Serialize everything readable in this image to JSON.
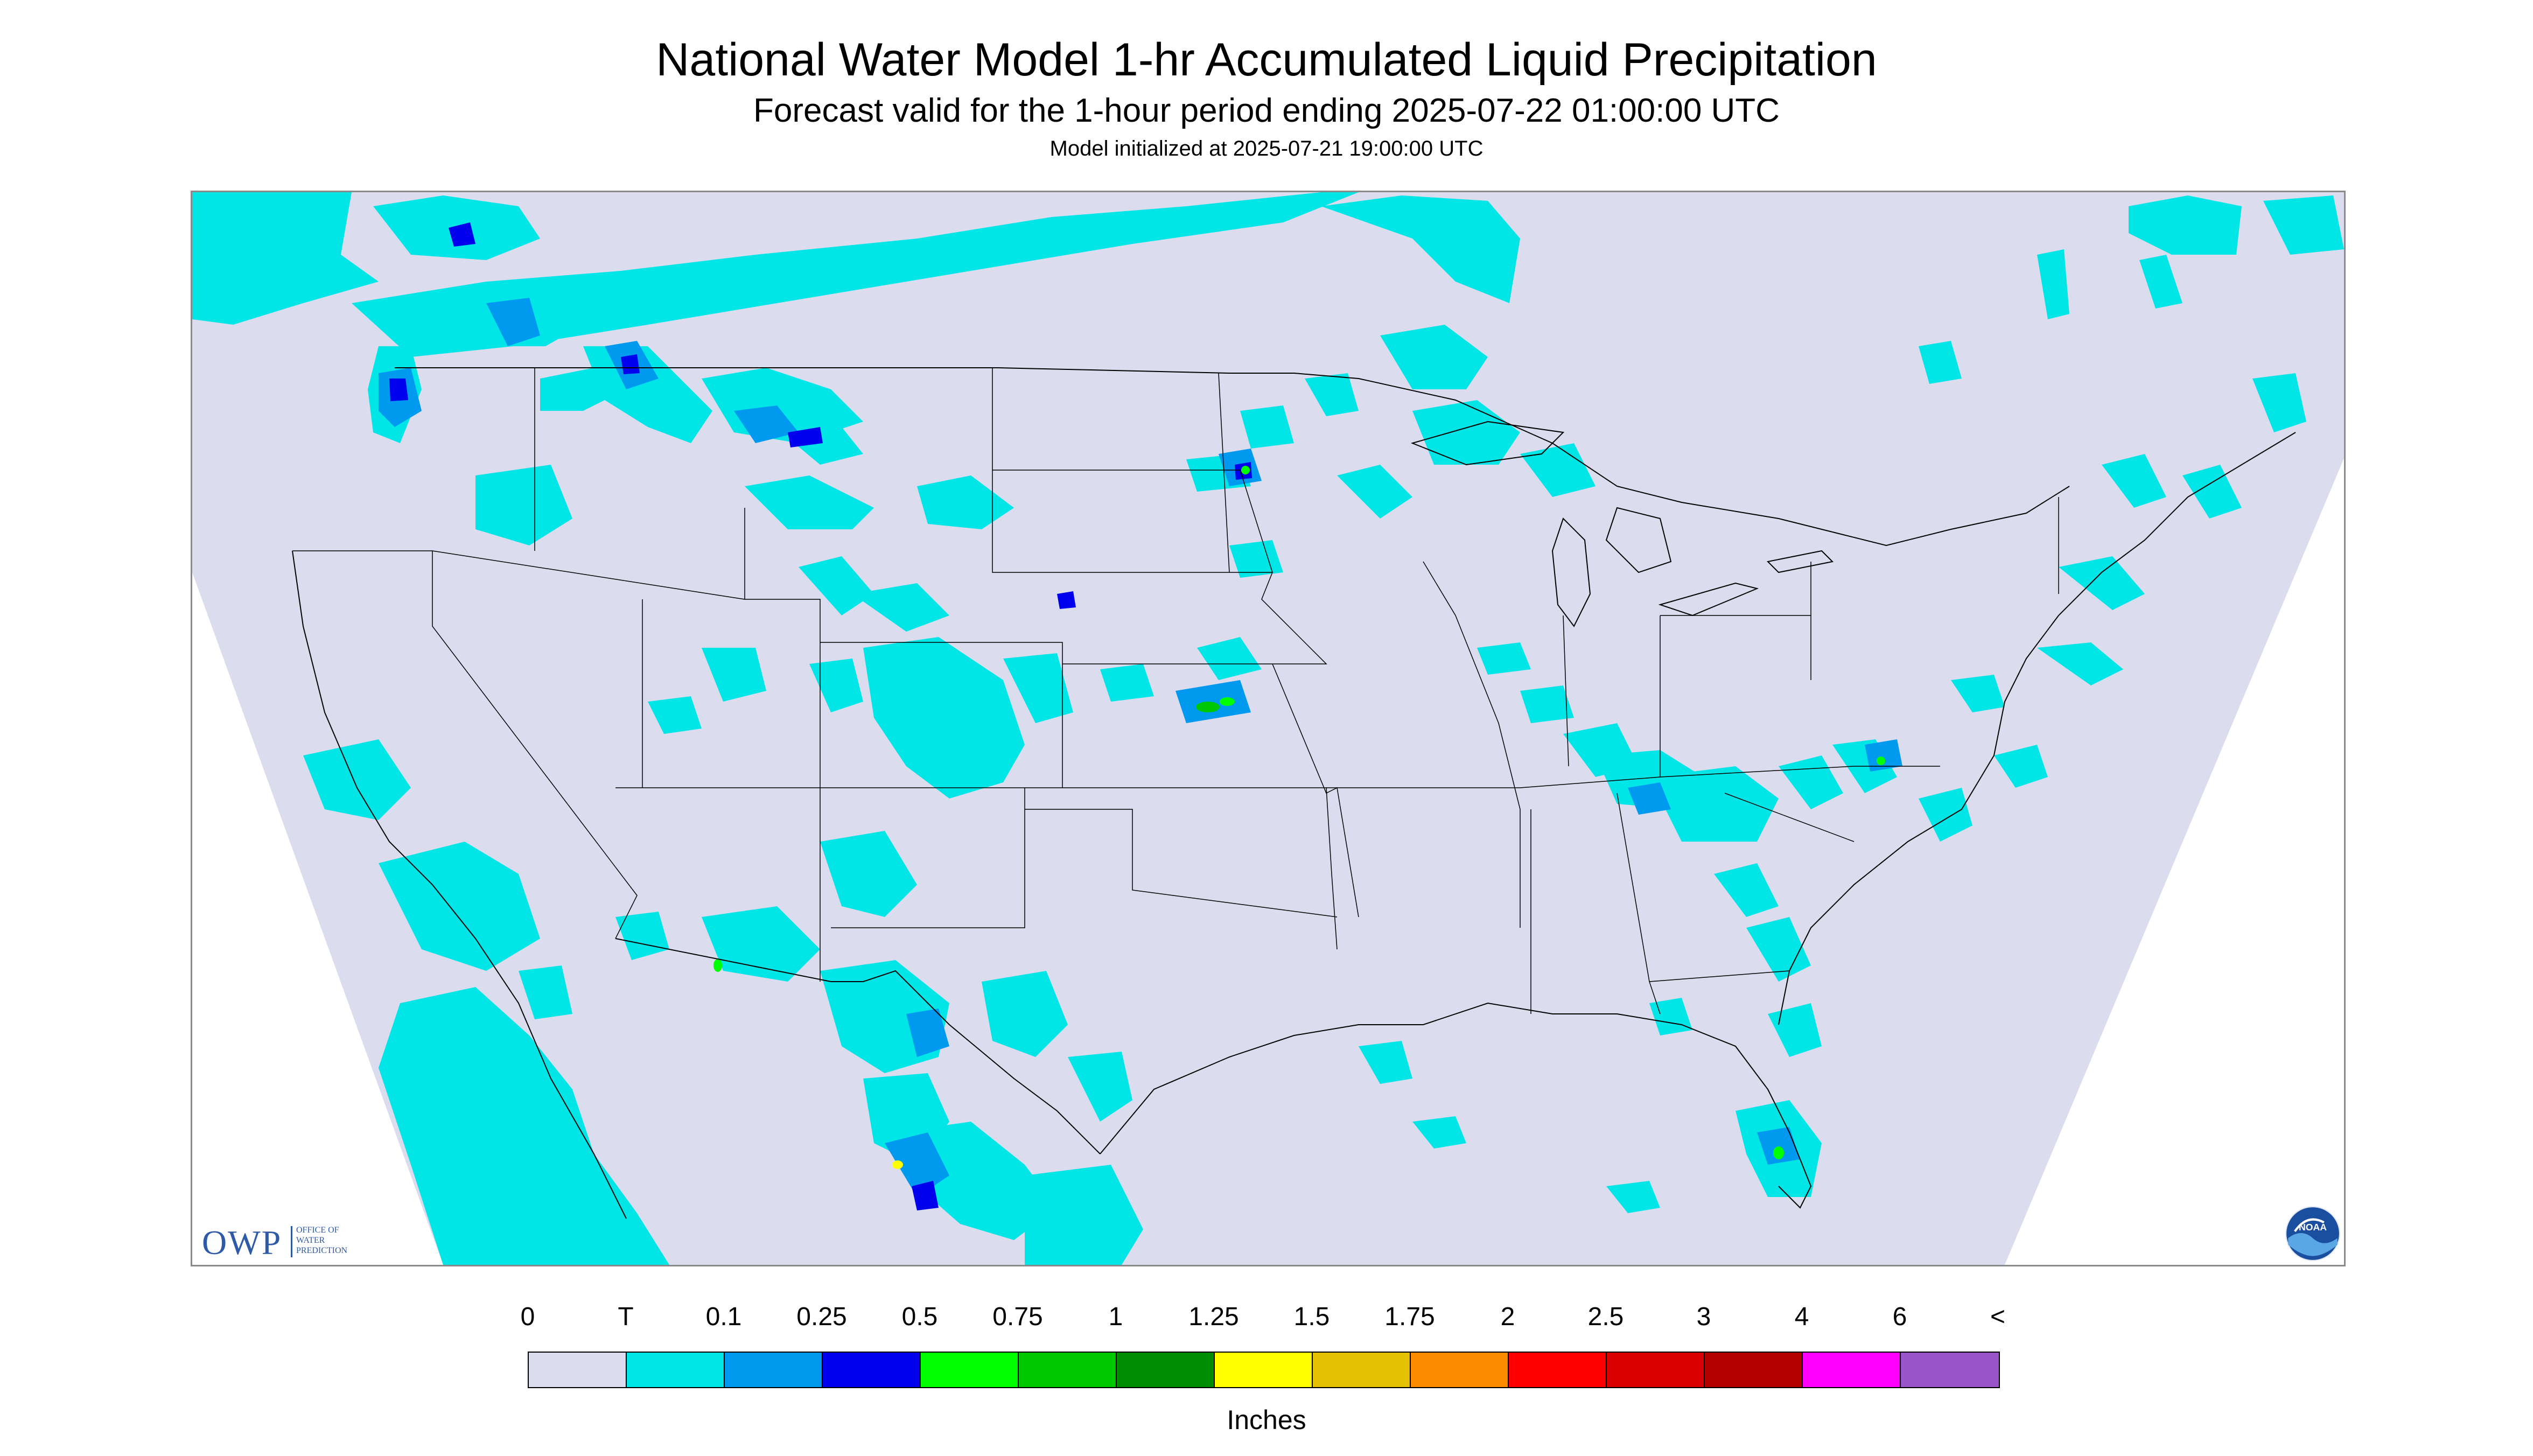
{
  "header": {
    "title": "National Water Model 1-hr Accumulated Liquid Precipitation",
    "subtitle": "Forecast valid for the 1-hour period ending 2025-07-22 01:00:00 UTC",
    "init_line": "Model initialized at 2025-07-21 19:00:00 UTC"
  },
  "logos": {
    "owp_letters": "OWP",
    "owp_sub": [
      "OFFICE OF",
      "WATER",
      "PREDICTION"
    ],
    "noaa_text": "NOAA"
  },
  "legend": {
    "labels": [
      "0",
      "T",
      "0.1",
      "0.25",
      "0.5",
      "0.75",
      "1",
      "1.25",
      "1.5",
      "1.75",
      "2",
      "2.5",
      "3",
      "4",
      "6",
      "<"
    ],
    "colors": [
      "#dcdcef",
      "#00e5e5",
      "#0099f0",
      "#0000ee",
      "#00ff00",
      "#00c800",
      "#008c00",
      "#ffff00",
      "#e5c000",
      "#ff8c00",
      "#ff0000",
      "#d80000",
      "#b40000",
      "#ff00ff",
      "#9955cc"
    ],
    "units": "Inches"
  },
  "colors": {
    "no_precip": "#dcdcef",
    "trace": "#00e5e5",
    "light": "#0099f0",
    "moderate": "#0000ee",
    "heavy": "#00ff00",
    "outside_domain": "#ffffff",
    "boundary": "#000000"
  }
}
